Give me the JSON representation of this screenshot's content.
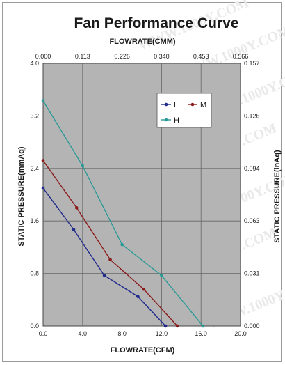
{
  "chart_data": {
    "type": "line",
    "title": "Fan Performance Curve",
    "top_axis_label": "FLOWRATE(CMM)",
    "xlabel": "FLOWRATE(CFM)",
    "ylabel": "STATIC PRESSURE(mmAq)",
    "y2label": "STATIC PRESSURE(inAq)",
    "xlim": [
      0,
      20
    ],
    "ylim": [
      0,
      4.0
    ],
    "x_ticks": [
      "0.0",
      "4.0",
      "8.0",
      "12.0",
      "16.0",
      "20.0"
    ],
    "y_ticks": [
      "0.0",
      "0.8",
      "1.6",
      "2.4",
      "3.2",
      "4.0"
    ],
    "top_ticks": [
      "0.000",
      "0.113",
      "0.226",
      "0.340",
      "0.453",
      "0.566"
    ],
    "right_ticks": [
      "0.000",
      "0.031",
      "0.063",
      "0.094",
      "0.126",
      "0.157"
    ],
    "grid": true,
    "legend_position": "top-right",
    "plot_background": "#b4b4b4",
    "series": [
      {
        "name": "L",
        "color": "#1f2a8c",
        "x": [
          0.0,
          3.1,
          6.2,
          9.6,
          12.4
        ],
        "y": [
          2.1,
          1.47,
          0.77,
          0.45,
          0.0
        ]
      },
      {
        "name": "M",
        "color": "#8b1a1a",
        "x": [
          0.0,
          3.4,
          6.8,
          10.2,
          13.6
        ],
        "y": [
          2.52,
          1.8,
          1.01,
          0.56,
          0.0
        ]
      },
      {
        "name": "H",
        "color": "#2a9a96",
        "x": [
          0.0,
          4.0,
          8.0,
          12.0,
          16.2
        ],
        "y": [
          3.43,
          2.44,
          1.24,
          0.77,
          0.0
        ]
      }
    ]
  },
  "watermark_text": "WWW.1000Y.COM"
}
